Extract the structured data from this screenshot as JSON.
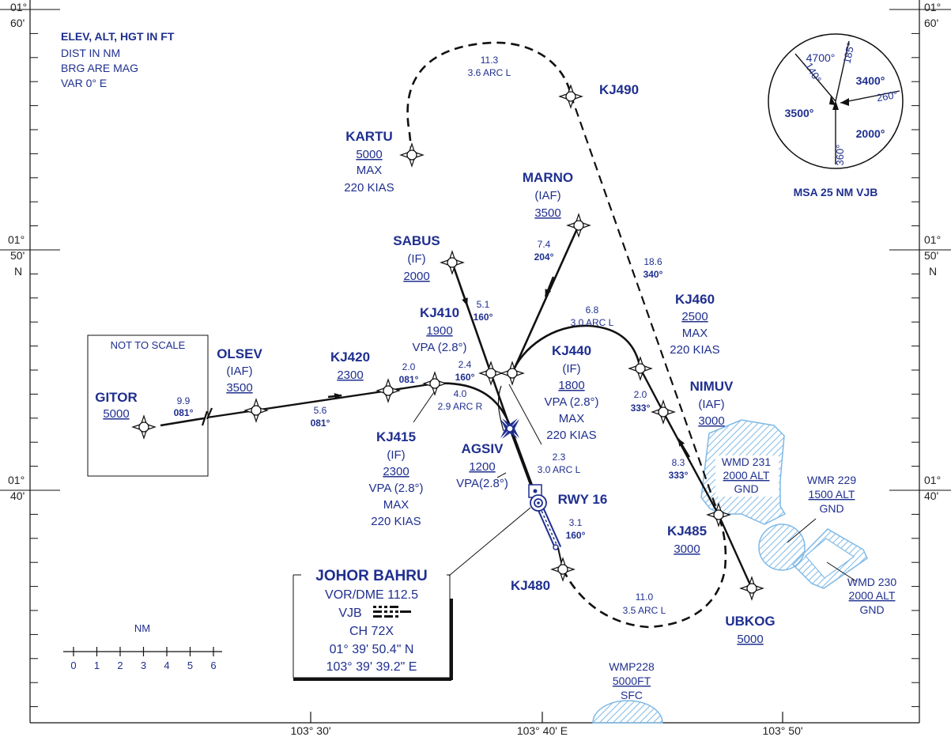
{
  "frame": {
    "lat_ticks": [
      {
        "deg": "01°",
        "min": "60'",
        "ns": ""
      },
      {
        "deg": "01°",
        "min": "50'",
        "ns": "N"
      },
      {
        "deg": "01°",
        "min": "40'",
        "ns": ""
      }
    ],
    "lon_ticks": [
      "103° 30'",
      "103° 40' E",
      "103° 50'"
    ]
  },
  "notes": [
    "ELEV, ALT, HGT  IN FT",
    "DIST IN NM",
    "BRG ARE MAG",
    "VAR 0° E"
  ],
  "msa": {
    "label": "MSA 25 NM VJB",
    "alt_north": "4700°",
    "alt_ne": "3400°",
    "alt_west": "3500°",
    "alt_se": "2000°",
    "brg_140": "140°",
    "brg_185": "185°",
    "brg_260": "260°",
    "brg_360": "360°"
  },
  "not_to_scale": "NOT TO SCALE",
  "scale": {
    "title": "NM",
    "labels": [
      "0",
      "1",
      "2",
      "3",
      "4",
      "5",
      "6"
    ]
  },
  "fixes": {
    "gitor": {
      "name": "GITOR",
      "alt": "5000"
    },
    "olsev": {
      "name": "OLSEV",
      "role": "(IAF)",
      "alt": "3500"
    },
    "kj420": {
      "name": "KJ420",
      "alt": "2300"
    },
    "kartu": {
      "name": "KARTU",
      "alt": "5000",
      "max": "MAX",
      "speed": "220 KIAS"
    },
    "kj490": {
      "name": "KJ490"
    },
    "marno": {
      "name": "MARNO",
      "role": "(IAF)",
      "alt": "3500"
    },
    "sabus": {
      "name": "SABUS",
      "role": "(IF)",
      "alt": "2000"
    },
    "kj410": {
      "name": "KJ410",
      "alt": "1900",
      "vpa": "VPA (2.8°)"
    },
    "kj440": {
      "name": "KJ440",
      "role": "(IF)",
      "alt": "1800",
      "vpa": "VPA (2.8°)",
      "max": "MAX",
      "speed": "220 KIAS"
    },
    "kj460": {
      "name": "KJ460",
      "alt": "2500",
      "max": "MAX",
      "speed": "220 KIAS"
    },
    "nimuv": {
      "name": "NIMUV",
      "role": "(IAF)",
      "alt": "3000"
    },
    "kj415": {
      "name": "KJ415",
      "role": "(IF)",
      "alt": "2300",
      "vpa": "VPA (2.8°)",
      "max": "MAX",
      "speed": "220 KIAS"
    },
    "agsiv": {
      "name": "AGSIV",
      "alt": "1200",
      "vpa": "VPA(2.8°)"
    },
    "rwy": {
      "name": "RWY 16"
    },
    "kj485": {
      "name": "KJ485",
      "alt": "3000"
    },
    "kj480": {
      "name": "KJ480"
    },
    "ubkog": {
      "name": "UBKOG",
      "alt": "5000"
    }
  },
  "legs": {
    "kartu_arc": {
      "dist": "11.3",
      "desc": "3.6 ARC L"
    },
    "gitor_olsev": {
      "dist": "9.9",
      "brg": "081°"
    },
    "olsev_kj420": {
      "dist": "5.6",
      "brg": "081°"
    },
    "kj420_kj415": {
      "dist": "2.0",
      "brg": "081°"
    },
    "kj415_arc": {
      "dist": "4.0",
      "desc": "2.9 ARC R"
    },
    "marno_leg": {
      "dist": "7.4",
      "brg": "204°"
    },
    "sabus_leg": {
      "dist": "5.1",
      "brg": "160°"
    },
    "kj410_leg": {
      "dist": "2.4",
      "brg": "160°"
    },
    "kj440_arc": {
      "dist": "6.8",
      "desc": "3.0 ARC L"
    },
    "kj490_leg": {
      "dist": "18.6",
      "brg": "340°"
    },
    "kj460_leg": {
      "dist": "2.0",
      "brg": "333°"
    },
    "nimuv_leg": {
      "dist": "8.3",
      "brg": "333°"
    },
    "agsiv_arc": {
      "dist": "2.3",
      "desc": "3.0 ARC L"
    },
    "rwy_leg": {
      "dist": "3.1",
      "brg": "160°"
    },
    "kj480_arc": {
      "dist": "11.0",
      "desc": "3.5 ARC L"
    }
  },
  "navaid": {
    "name": "JOHOR BAHRU",
    "freq": "VOR/DME 112.5",
    "ident": "VJB",
    "channel": "CH 72X",
    "lat": "01° 39' 50.4\" N",
    "lon": "103° 39' 39.2\" E"
  },
  "airspaces": {
    "wmd231": {
      "name": "WMD 231",
      "upper": "2000 ALT",
      "lower": "GND"
    },
    "wmr229": {
      "name": "WMR 229",
      "upper": "1500 ALT",
      "lower": "GND"
    },
    "wmd230": {
      "name": "WMD 230",
      "upper": "2000 ALT",
      "lower": "GND"
    },
    "wmp228": {
      "name": "WMP228",
      "upper": "5000FT",
      "lower": "SFC"
    }
  },
  "colors": {
    "ink": "#1f2f8f",
    "line": "#111111",
    "airspace": "#7fb9e6"
  }
}
